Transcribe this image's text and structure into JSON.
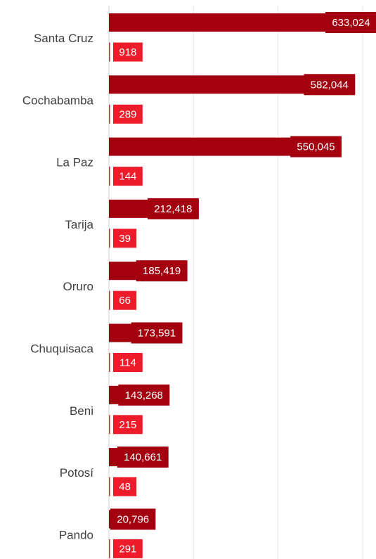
{
  "chart_data": {
    "type": "bar",
    "orientation": "horizontal",
    "categories": [
      "Santa Cruz",
      "Cochabamba",
      "La Paz",
      "Tarija",
      "Oruro",
      "Chuquisaca",
      "Beni",
      "Potosí",
      "Pando"
    ],
    "value_labels": {
      "primary": [
        "633,024",
        "582,044",
        "550,045",
        "212,418",
        "185,419",
        "173,591",
        "143,268",
        "140,661",
        "20,796"
      ],
      "secondary": [
        "918",
        "289",
        "144",
        "39",
        "66",
        "114",
        "215",
        "48",
        "291"
      ]
    },
    "series": [
      {
        "values": [
          633024,
          582044,
          550045,
          212418,
          185419,
          173591,
          143268,
          140661,
          20796
        ],
        "color": "#a30010"
      },
      {
        "values": [
          918,
          289,
          144,
          39,
          66,
          114,
          215,
          48,
          291
        ],
        "color": "#ee1c2b"
      }
    ],
    "title": "",
    "xlabel": "",
    "ylabel": "",
    "xlim": [
      0,
      650000
    ],
    "grid": true,
    "gridline_values": [
      0,
      200000,
      400000,
      600000
    ],
    "tick_labels_shown": false,
    "legend": "none"
  },
  "colors": {
    "primary_bar": "#a30010",
    "secondary_bar": "#ee1c2b",
    "category_text": "#404040",
    "value_text": "#ffffff",
    "grid": "#e6e6e6"
  }
}
